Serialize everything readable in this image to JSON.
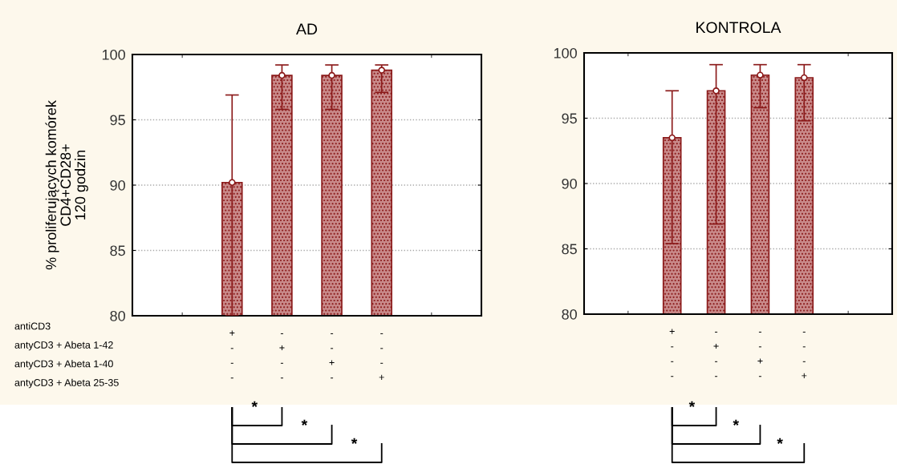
{
  "chart_data": [
    {
      "type": "bar",
      "title": "AD",
      "ylabel": "% proliferujących komórek\nCD4+CD28+\n120 godzin",
      "categories": [
        null,
        null,
        "+\n-\n-\n-",
        "-\n+\n-\n-",
        "-\n-\n+\n-",
        "-\n-\n-\n+",
        null,
        null
      ],
      "series": [
        {
          "color": "#8b1a1a",
          "values": [
            null,
            null,
            90.2,
            98.4,
            98.4,
            98.8,
            null,
            null
          ],
          "errors": [
            null,
            null,
            [
              80,
              96.9
            ],
            [
              95.8,
              99.2
            ],
            [
              95.8,
              99.2
            ],
            [
              97.1,
              99.2
            ],
            null,
            null
          ]
        },
        {
          "type": "scatter",
          "color": "#ffffff",
          "marker": "circle",
          "values": [
            null,
            null,
            90.2,
            98.4,
            98.4,
            98.8,
            null,
            null
          ]
        }
      ],
      "ylim": [
        80,
        100
      ],
      "yticks": [
        80,
        85,
        90,
        95,
        100
      ],
      "grid": "y",
      "annotations": [
        "antiCD3",
        "antyCD3 + Abeta 1-42",
        "antyCD3 + Abeta 1-40",
        "antyCD3 + Abeta 25-35",
        "*",
        "*",
        "*"
      ]
    },
    {
      "type": "bar",
      "title": "KONTROLA",
      "categories": [
        null,
        null,
        "+\n-\n-\n-",
        "-\n+\n-\n-",
        "-\n-\n+\n-",
        "-\n-\n-\n+",
        null,
        null
      ],
      "series": [
        {
          "color": "#8b1a1a",
          "values": [
            null,
            null,
            93.5,
            97.1,
            98.3,
            98.1,
            null,
            null
          ],
          "errors": [
            null,
            null,
            [
              85.4,
              97.1
            ],
            [
              86.9,
              99.1
            ],
            [
              95.8,
              99.1
            ],
            [
              94.8,
              99.1
            ],
            null,
            null
          ]
        },
        {
          "type": "scatter",
          "color": "#ffffff",
          "marker": "circle",
          "values": [
            null,
            null,
            93.5,
            97.1,
            98.3,
            98.1,
            null,
            null
          ]
        }
      ],
      "ylim": [
        80,
        100
      ],
      "yticks": [
        80,
        85,
        90,
        95,
        100
      ],
      "grid": "y",
      "annotations": [
        "*",
        "*",
        "*"
      ]
    }
  ]
}
